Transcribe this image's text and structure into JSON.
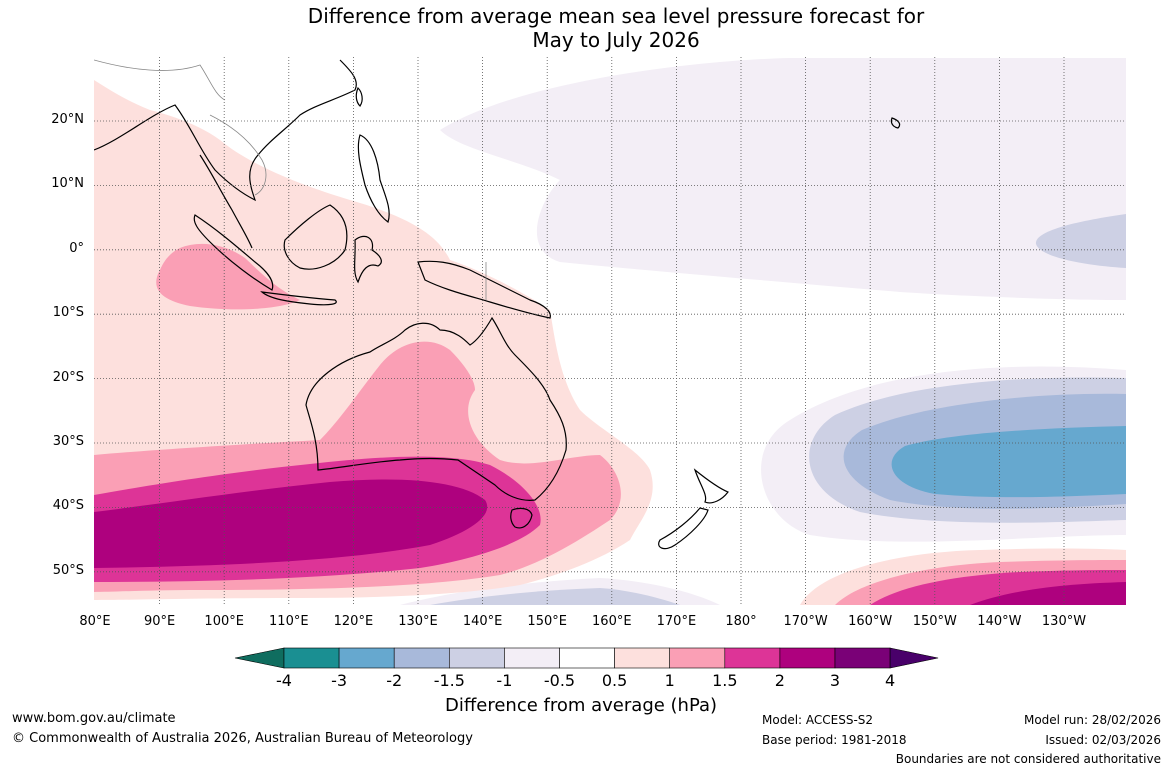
{
  "title": {
    "line1": "Difference from average mean sea level pressure forecast for",
    "line2": "May to July 2026"
  },
  "axes": {
    "lat_labels": [
      "20°N",
      "10°N",
      "0°",
      "10°S",
      "20°S",
      "30°S",
      "40°S",
      "50°S"
    ],
    "lon_labels": [
      "80°E",
      "90°E",
      "100°E",
      "110°E",
      "120°E",
      "130°E",
      "140°E",
      "150°E",
      "160°E",
      "170°E",
      "180°",
      "170°W",
      "160°W",
      "150°W",
      "140°W",
      "130°W"
    ]
  },
  "colorbar": {
    "title": "Difference from average (hPa)",
    "ticks": [
      "-4",
      "-3",
      "-2",
      "-1.5",
      "-1",
      "-0.5",
      "0.5",
      "1",
      "1.5",
      "2",
      "3",
      "4"
    ],
    "colors": [
      "#0f6d5f",
      "#1a8f92",
      "#66a8cf",
      "#a8b9da",
      "#cdd0e4",
      "#f3eef6",
      "#ffffff",
      "#fde0dd",
      "#fa9fb5",
      "#dd3497",
      "#ae017e",
      "#7a0177",
      "#49006a"
    ]
  },
  "footer": {
    "website": "www.bom.gov.au/climate",
    "copyright": "© Commonwealth of Australia 2026, Australian Bureau of Meteorology",
    "model": "Model: ACCESS-S2",
    "base_period": "Base period: 1981-2018",
    "model_run": "Model run: 28/02/2026",
    "issued": "Issued: 02/03/2026",
    "disclaimer": "Boundaries are not considered authoritative"
  }
}
